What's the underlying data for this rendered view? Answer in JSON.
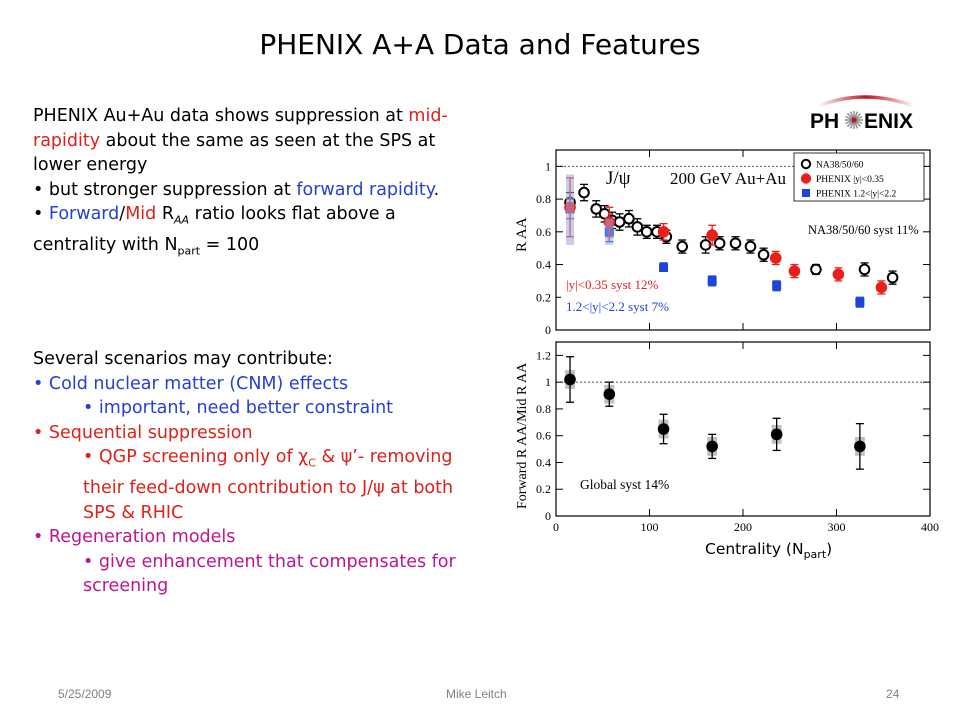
{
  "slide": {
    "title": "PHENIX A+A Data and Features",
    "para1": {
      "line1_a": "PHENIX Au+Au data shows suppression at ",
      "line1_b": "mid-rapidity",
      "line1_c": " about the same as seen at the SPS at lower energy",
      "bullet1_a": "but stronger suppression at ",
      "bullet1_b": "forward rapidity",
      "bullet1_c": ".",
      "bullet2_a": "Forward",
      "bullet2_b": "/",
      "bullet2_c": "Mid",
      "bullet2_d": " R",
      "bullet2_sub": "AA",
      "bullet2_e": " ratio looks flat above a centrality with N",
      "bullet2_sub2": "part",
      "bullet2_f": " = 100"
    },
    "para2": {
      "heading": "Several scenarios may contribute:",
      "b1": "Cold nuclear matter (CNM) effects",
      "b1_sub": "important, need better constraint",
      "b2": "Sequential suppression",
      "b2_sub_a": "QGP screening only of ",
      "b2_chi": "χ",
      "b2_chi_sub": "C",
      "b2_amp": " & ",
      "b2_psi": "ψ",
      "b2_sub_b": "’- removing their feed-down contribution to J/",
      "b2_psi2": "ψ",
      "b2_sub_c": " at both SPS & RHIC",
      "b3": "Regeneration models",
      "b3_sub": "give enhancement that compensates for screening"
    },
    "footer": {
      "date": "5/25/2009",
      "author": "Mike Leitch",
      "page": "24"
    },
    "logo": {
      "left": "PH",
      "right": "ENIX"
    },
    "xlabel_main": "Centrality (N",
    "xlabel_sub": "part",
    "xlabel_end": ")",
    "colors": {
      "phenix_mid": "#e8201c",
      "phenix_fwd": "#1f44d8",
      "na50": "#000000",
      "red_text": "#e0201a",
      "blue_text": "#2540d8",
      "magenta_text": "#c0148c"
    }
  },
  "chart_data": [
    {
      "type": "scatter",
      "panel": "top",
      "title": "J/ψ   200 GeV Au+Au",
      "ylabel": "R_AA",
      "xlim": [
        0,
        400
      ],
      "ylim": [
        0,
        1.1
      ],
      "yticks": [
        0,
        0.2,
        0.4,
        0.6,
        0.8,
        1
      ],
      "reference_line": 1,
      "legend": [
        "NA38/50/60",
        "PHENIX |y|<0.35",
        "PHENIX 1.2<|y|<2.2"
      ],
      "annotations": [
        "NA38/50/60 syst 11%",
        "|y|<0.35 syst 12%",
        "1.2<|y|<2.2 syst 7%"
      ],
      "series": [
        {
          "name": "NA38/50/60",
          "marker": "open-circle",
          "x": [
            15,
            30,
            43,
            52,
            60,
            68,
            78,
            87,
            97,
            108,
            118,
            135,
            160,
            175,
            192,
            208,
            222,
            278,
            330,
            360
          ],
          "y": [
            0.78,
            0.84,
            0.74,
            0.71,
            0.67,
            0.66,
            0.68,
            0.63,
            0.6,
            0.6,
            0.57,
            0.51,
            0.52,
            0.53,
            0.53,
            0.51,
            0.46,
            0.37,
            0.37,
            0.32
          ],
          "err": [
            0.06,
            0.05,
            0.05,
            0.05,
            0.05,
            0.05,
            0.05,
            0.05,
            0.04,
            0.04,
            0.04,
            0.04,
            0.05,
            0.04,
            0.04,
            0.04,
            0.04,
            0.03,
            0.04,
            0.04
          ]
        },
        {
          "name": "PHENIX |y|<0.35",
          "marker": "filled-circle",
          "x": [
            15,
            57,
            115,
            167,
            235,
            255,
            302,
            348
          ],
          "y": [
            0.75,
            0.66,
            0.6,
            0.58,
            0.44,
            0.36,
            0.34,
            0.26
          ],
          "err": [
            0.18,
            0.09,
            0.05,
            0.06,
            0.04,
            0.04,
            0.04,
            0.04
          ]
        },
        {
          "name": "PHENIX 1.2<|y|<2.2",
          "marker": "filled-square",
          "x": [
            15,
            57,
            115,
            167,
            236,
            325
          ],
          "y": [
            0.74,
            0.6,
            0.38,
            0.3,
            0.27,
            0.17
          ],
          "err": [
            0.06,
            0.06,
            0.03,
            0.03,
            0.03,
            0.03
          ]
        }
      ]
    },
    {
      "type": "scatter",
      "panel": "bottom",
      "ylabel": "Forward R_AA/Mid R_AA",
      "xlabel": "Centrality (N_part)",
      "xlim": [
        0,
        400
      ],
      "xticks": [
        0,
        100,
        200,
        300,
        400
      ],
      "ylim": [
        0,
        1.3
      ],
      "yticks": [
        0,
        0.2,
        0.4,
        0.6,
        0.8,
        1,
        1.2
      ],
      "reference_line": 1,
      "annotations": [
        "Global syst 14%"
      ],
      "series": [
        {
          "name": "",
          "marker": "filled-circle",
          "x": [
            15,
            57,
            115,
            167,
            236,
            325
          ],
          "y": [
            1.02,
            0.91,
            0.65,
            0.52,
            0.61,
            0.52
          ],
          "err": [
            0.17,
            0.09,
            0.11,
            0.09,
            0.12,
            0.17
          ]
        }
      ]
    }
  ]
}
